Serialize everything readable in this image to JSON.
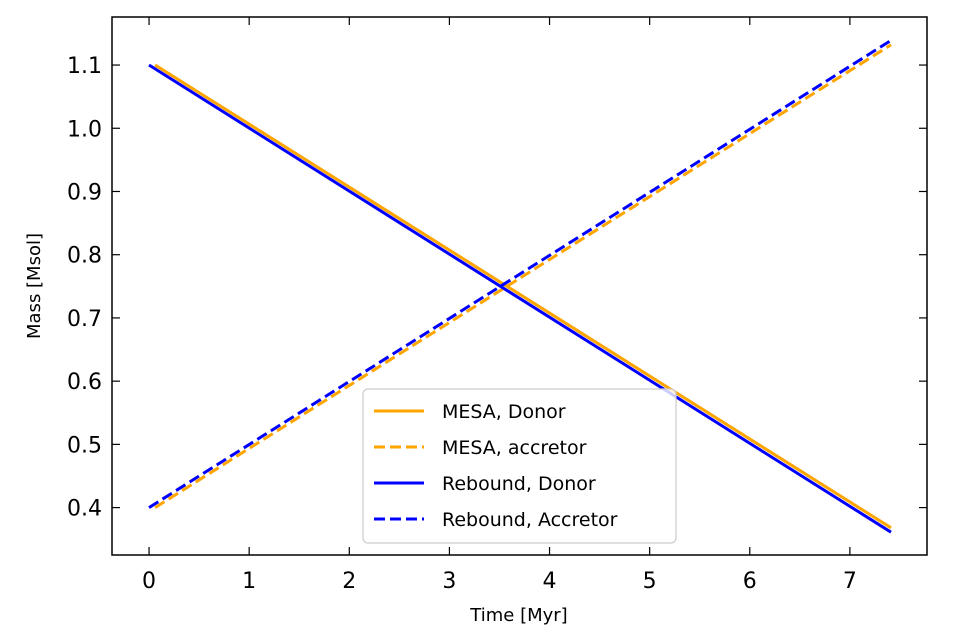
{
  "chart_data": {
    "type": "line",
    "xlabel": "Time [Myr]",
    "ylabel": "Mass [Msol]",
    "xlim": [
      -0.37,
      7.77
    ],
    "ylim": [
      0.325,
      1.176
    ],
    "xticks": [
      0,
      1,
      2,
      3,
      4,
      5,
      6,
      7
    ],
    "xtick_labels": [
      "0",
      "1",
      "2",
      "3",
      "4",
      "5",
      "6",
      "7"
    ],
    "yticks": [
      0.4,
      0.5,
      0.6,
      0.7,
      0.8,
      0.9,
      1.0,
      1.1
    ],
    "ytick_labels": [
      "0.4",
      "0.5",
      "0.6",
      "0.7",
      "0.8",
      "0.9",
      "1.0",
      "1.1"
    ],
    "tick_direction": "in",
    "grid": false,
    "legend_position": "lower center",
    "series": [
      {
        "name": "MESA, Donor",
        "color": "#FFA500",
        "dash": "solid",
        "x": [
          0.06,
          7.41
        ],
        "y": [
          1.1,
          0.368
        ]
      },
      {
        "name": "MESA, accretor",
        "color": "#FFA500",
        "dash": "dashed",
        "x": [
          0.06,
          7.41
        ],
        "y": [
          0.4,
          1.132
        ]
      },
      {
        "name": "Rebound, Donor",
        "color": "#0000FF",
        "dash": "solid",
        "x": [
          0.0,
          7.41
        ],
        "y": [
          1.1,
          0.361
        ]
      },
      {
        "name": "Rebound, Accretor",
        "color": "#0000FF",
        "dash": "dashed",
        "x": [
          0.0,
          7.41
        ],
        "y": [
          0.4,
          1.139
        ]
      }
    ]
  }
}
